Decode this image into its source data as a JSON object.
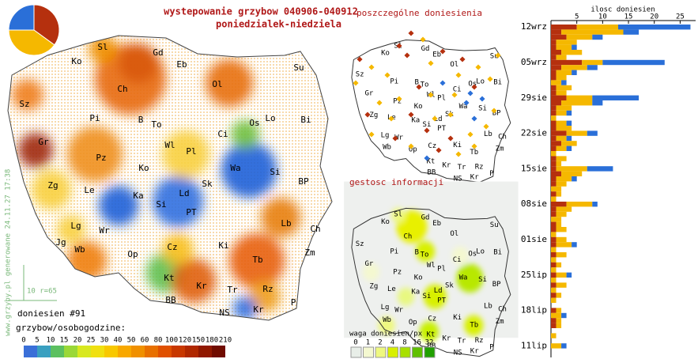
{
  "header": {
    "title_line1": "wystepowanie grzybow 040906-040912",
    "title_line2": "poniedzialek-niedziela"
  },
  "side_note": "www.grzyby.pl generowane 24.11.27 17:38",
  "pie": {
    "values": [
      35,
      40,
      25
    ],
    "colors": [
      "#b5300e",
      "#f5b800",
      "#2a6fd8"
    ]
  },
  "main_map": {
    "labels": [
      "Sl",
      "Gd",
      "Ko",
      "Eb",
      "Su",
      "Ch",
      "Ol",
      "Sz",
      "Pi",
      "B",
      "To",
      "Os",
      "Lo",
      "Bi",
      "Ci",
      "Gr",
      "Wl",
      "Pl",
      "Pz",
      "Ko",
      "Wa",
      "Si",
      "Zg",
      "Le",
      "Ka",
      "Ld",
      "Sk",
      "BP",
      "Si",
      "PT",
      "Lb",
      "Lg",
      "Wr",
      "Ch",
      "Jg",
      "Wb",
      "Op",
      "Cz",
      "Ki",
      "Zm",
      "Tb",
      "Kt",
      "Kr",
      "Rz",
      "Tr",
      "BB",
      "P",
      "NS",
      "Kr"
    ],
    "scale_label": "10 r=65",
    "reports": "doniesien #91",
    "legend_title": "grzybow/osobogodzine:",
    "legend_ticks": [
      0,
      5,
      10,
      15,
      20,
      25,
      30,
      40,
      50,
      60,
      80,
      100,
      120,
      150,
      180,
      210
    ],
    "legend_colors": [
      "#3a6fd8",
      "#3aa0c0",
      "#5cc060",
      "#9ad838",
      "#d8e820",
      "#f0e010",
      "#f8c800",
      "#f8a800",
      "#f09000",
      "#e87000",
      "#e05000",
      "#c83800",
      "#b02800",
      "#901800",
      "#700c00"
    ]
  },
  "reports_map": {
    "title": "poszczególne doniesienia",
    "labels": [
      "Sl",
      "Gd",
      "Ko",
      "Eb",
      "Su",
      "Ol",
      "Sz",
      "Pi",
      "B",
      "To",
      "Os",
      "Lo",
      "Bi",
      "Ci",
      "Gr",
      "Wl",
      "Pl",
      "Pz",
      "Ko",
      "Wa",
      "Si",
      "Zg",
      "Le",
      "Ka",
      "Ld",
      "Sk",
      "BP",
      "Si",
      "PT",
      "Lb",
      "Lg",
      "Wr",
      "Ch",
      "Wb",
      "Op",
      "Cz",
      "Ki",
      "Zm",
      "Tb",
      "Kt",
      "Kr",
      "Rz",
      "Tr",
      "BB",
      "P",
      "NS",
      "Kr"
    ]
  },
  "density_map": {
    "title": "gestosc informacji",
    "labels": [
      "Sl",
      "Gd",
      "Ko",
      "Eb",
      "Su",
      "Ch",
      "Ol",
      "Sz",
      "Pi",
      "B",
      "To",
      "Os",
      "Lo",
      "Bi",
      "Ci",
      "Gr",
      "Wl",
      "Pl",
      "Pz",
      "Ko",
      "Wa",
      "Si",
      "Zg",
      "Le",
      "Ka",
      "Ld",
      "Sk",
      "BP",
      "Si",
      "PT",
      "Lb",
      "Lg",
      "Wr",
      "Ch",
      "Wb",
      "Op",
      "Cz",
      "Ki",
      "Zm",
      "Tb",
      "Kt",
      "Kr",
      "Rz",
      "Tr",
      "BB",
      "P",
      "NS",
      "Kr"
    ],
    "legend_title": "waga doniesien/px",
    "legend_ticks": [
      0,
      1,
      2,
      4,
      8,
      16,
      32
    ],
    "legend_colors": [
      "#e8eee8",
      "#f4f8d0",
      "#eef880",
      "#d8f000",
      "#a8e000",
      "#60c000",
      "#20a000"
    ]
  },
  "chart_data": {
    "type": "bar",
    "orientation": "horizontal",
    "xlabel": "ilosc doniesien",
    "categories": [
      "12wrz",
      null,
      null,
      null,
      null,
      null,
      null,
      "05wrz",
      null,
      null,
      null,
      null,
      null,
      null,
      "29sie",
      null,
      null,
      null,
      null,
      null,
      null,
      "22sie",
      null,
      null,
      null,
      null,
      null,
      null,
      "15sie",
      null,
      null,
      null,
      null,
      null,
      null,
      "08sie",
      null,
      null,
      null,
      null,
      null,
      null,
      "01sie",
      null,
      null,
      null,
      null,
      null,
      null,
      "25lip",
      null,
      null,
      null,
      null,
      null,
      null,
      "18lip",
      null,
      null,
      null,
      null,
      null,
      null,
      "11lip"
    ],
    "series": [
      {
        "color": "#b5300e",
        "values": [
          5,
          2,
          3,
          1,
          1,
          2,
          1,
          6,
          2,
          1,
          1,
          0,
          1,
          1,
          3,
          2,
          1,
          1,
          0,
          1,
          1,
          3,
          1,
          2,
          1,
          0,
          1,
          1,
          1,
          2,
          1,
          1,
          0,
          1,
          0,
          3,
          1,
          1,
          0,
          1,
          1,
          0,
          1,
          1,
          0,
          1,
          0,
          1,
          0,
          1,
          0,
          1,
          0,
          1,
          0,
          0,
          1,
          0,
          1,
          1,
          0,
          0,
          0,
          0
        ]
      },
      {
        "color": "#f5b800",
        "values": [
          8,
          12,
          5,
          4,
          3,
          4,
          2,
          4,
          5,
          3,
          2,
          2,
          3,
          2,
          5,
          6,
          3,
          2,
          1,
          2,
          3,
          4,
          2,
          3,
          2,
          1,
          2,
          1,
          6,
          4,
          3,
          2,
          2,
          1,
          1,
          5,
          3,
          2,
          2,
          1,
          2,
          1,
          2,
          3,
          1,
          2,
          1,
          1,
          1,
          2,
          1,
          2,
          1,
          1,
          1,
          0,
          1,
          2,
          1,
          1,
          0,
          1,
          0,
          2
        ]
      },
      {
        "color": "#2a6fd8",
        "values": [
          14,
          3,
          2,
          0,
          1,
          0,
          0,
          12,
          2,
          1,
          0,
          1,
          0,
          0,
          9,
          2,
          0,
          1,
          0,
          1,
          0,
          2,
          1,
          0,
          1,
          0,
          0,
          0,
          5,
          0,
          1,
          0,
          0,
          0,
          0,
          1,
          0,
          0,
          0,
          0,
          0,
          0,
          0,
          1,
          0,
          0,
          0,
          0,
          0,
          1,
          0,
          0,
          0,
          0,
          0,
          0,
          0,
          1,
          0,
          0,
          0,
          0,
          0,
          1
        ]
      }
    ],
    "xlim": [
      0,
      28
    ],
    "xticks": [
      5,
      10,
      15,
      20,
      25
    ]
  }
}
